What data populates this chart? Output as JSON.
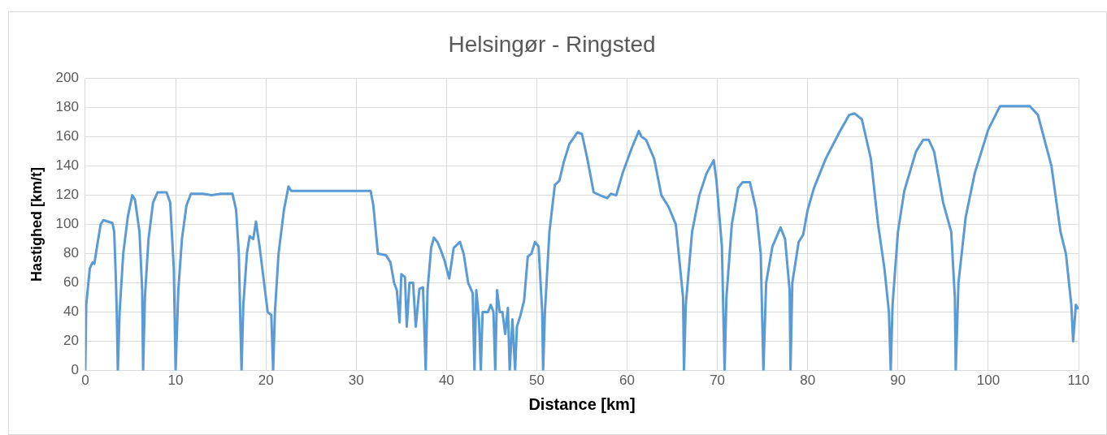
{
  "chart_data": {
    "type": "line",
    "title": "Helsingør - Ringsted",
    "xlabel": "Distance [km]",
    "ylabel": "Hastighed [km/t]",
    "xlim": [
      0,
      110
    ],
    "xticks": [
      0,
      10,
      20,
      30,
      40,
      50,
      60,
      70,
      80,
      90,
      100,
      110
    ],
    "ylim": [
      0,
      200
    ],
    "yticks": [
      0,
      20,
      40,
      60,
      80,
      100,
      120,
      140,
      160,
      180,
      200
    ],
    "grid": true,
    "legend": false,
    "marker": "none",
    "line_style": "solid",
    "series": [
      {
        "color": "#5b9bd5",
        "x": [
          0,
          0.1,
          0.5,
          0.8,
          1.0,
          1.3,
          1.7,
          2.0,
          2.5,
          3.0,
          3.2,
          3.4,
          3.5,
          3.6,
          3.8,
          4.2,
          4.7,
          5.2,
          5.5,
          6.0,
          6.3,
          6.4,
          6.6,
          7.0,
          7.5,
          8.0,
          9.0,
          9.4,
          9.8,
          10.0,
          10.3,
          10.7,
          11.2,
          11.7,
          13,
          14,
          15,
          16.3,
          16.7,
          17.0,
          17.3,
          17.5,
          17.9,
          18.2,
          18.6,
          18.9,
          19.3,
          19.8,
          20.2,
          20.6,
          20.8,
          21.0,
          21.4,
          22.0,
          22.5,
          22.8,
          26,
          30,
          31.6,
          31.9,
          32.4,
          33.3,
          33.8,
          34.2,
          34.5,
          34.8,
          35.0,
          35.4,
          35.6,
          35.9,
          36.3,
          36.6,
          37.0,
          37.4,
          37.7,
          37.9,
          38.3,
          38.6,
          39.0,
          39.4,
          39.8,
          40.3,
          40.8,
          41.5,
          41.9,
          42.4,
          42.9,
          43.1,
          43.3,
          43.6,
          43.8,
          44.0,
          44.6,
          44.9,
          45.2,
          45.4,
          45.6,
          45.9,
          46.2,
          46.5,
          46.8,
          47.0,
          47.3,
          47.6,
          47.8,
          48.2,
          48.6,
          49.0,
          49.4,
          49.8,
          50.2,
          50.6,
          50.7,
          50.9,
          51.4,
          52.0,
          52.5,
          53.0,
          53.6,
          54.5,
          55.0,
          55.6,
          56.3,
          57,
          57.8,
          58.2,
          58.8,
          59.5,
          60.5,
          61.3,
          61.6,
          62.1,
          63.0,
          63.8,
          64.6,
          65.4,
          66.2,
          66.3,
          66.5,
          67.2,
          68.0,
          68.8,
          69.6,
          69.9,
          70.5,
          70.8,
          71.0,
          71.6,
          72.3,
          72.8,
          73.6,
          74.3,
          74.8,
          75.1,
          75.4,
          76.1,
          77.0,
          77.5,
          78.0,
          78.1,
          78.3,
          79.0,
          79.5,
          80.0,
          80.7,
          82,
          83.5,
          84.6,
          85.2,
          86.0,
          87.0,
          87.8,
          88.5,
          89.0,
          89.2,
          89.4,
          90.0,
          90.7,
          92.0,
          92.8,
          93.4,
          94.0,
          95.0,
          95.9,
          96.3,
          96.4,
          96.7,
          97.5,
          98.5,
          100,
          101.3,
          102.5,
          104.6,
          105.5,
          107,
          108,
          108.6,
          109.2,
          109.4,
          109.7,
          110
        ],
        "values": [
          0,
          45,
          70,
          74,
          73,
          85,
          100,
          103,
          102,
          101,
          95,
          60,
          35,
          0,
          40,
          80,
          105,
          120,
          117,
          95,
          55,
          0,
          50,
          90,
          115,
          122,
          122,
          115,
          70,
          0,
          55,
          90,
          113,
          121,
          121,
          120,
          121,
          121,
          110,
          80,
          0,
          45,
          80,
          92,
          90,
          102,
          85,
          60,
          40,
          38,
          0,
          40,
          80,
          110,
          126,
          123,
          123,
          123,
          123,
          113,
          80,
          79,
          74,
          60,
          55,
          33,
          66,
          64,
          30,
          60,
          60,
          30,
          56,
          57,
          0,
          55,
          84,
          91,
          88,
          82,
          75,
          63,
          84,
          88,
          80,
          60,
          53,
          0,
          55,
          35,
          0,
          40,
          40,
          45,
          40,
          0,
          55,
          40,
          40,
          25,
          43,
          0,
          35,
          0,
          30,
          38,
          48,
          78,
          80,
          88,
          85,
          40,
          0,
          40,
          95,
          127,
          130,
          143,
          155,
          163,
          162,
          145,
          122,
          120,
          118,
          121,
          120,
          135,
          152,
          164,
          160,
          158,
          145,
          120,
          112,
          100,
          50,
          0,
          45,
          95,
          120,
          135,
          144,
          130,
          85,
          0,
          50,
          100,
          125,
          129,
          129,
          110,
          80,
          0,
          60,
          85,
          98,
          90,
          55,
          0,
          60,
          88,
          93,
          110,
          125,
          145,
          163,
          175,
          176,
          172,
          145,
          100,
          70,
          40,
          0,
          45,
          95,
          123,
          150,
          158,
          158,
          150,
          115,
          95,
          50,
          0,
          60,
          105,
          135,
          165,
          181,
          181,
          181,
          175,
          140,
          95,
          80,
          45,
          20,
          45,
          42
        ]
      }
    ]
  }
}
